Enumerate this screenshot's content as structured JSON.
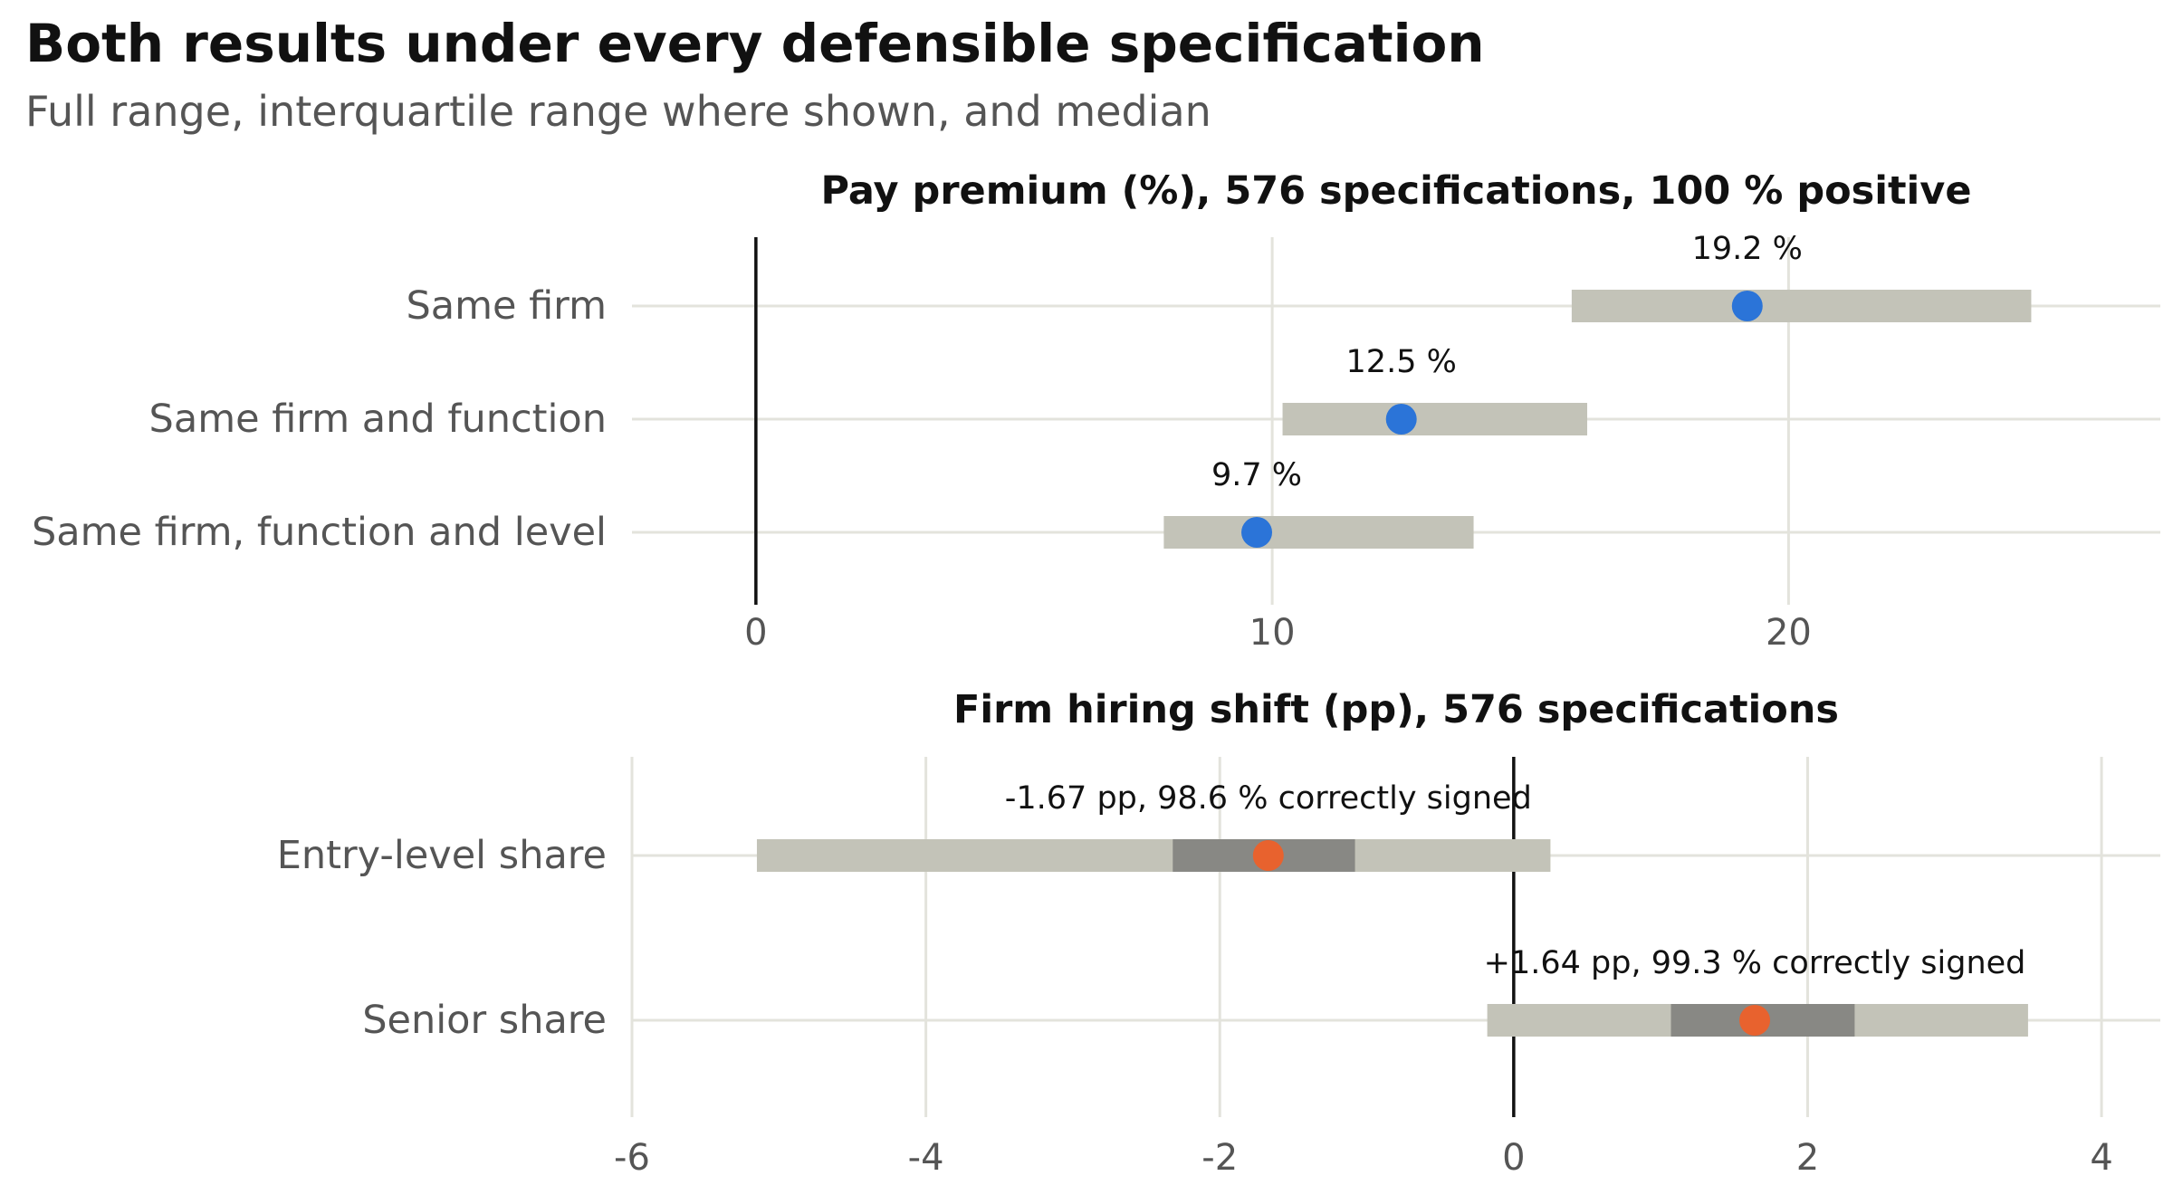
{
  "title": "Both results under every defensible specification",
  "subtitle": "Full range, interquartile range where shown, and median",
  "colors": {
    "grid": "#e3e3dc",
    "range_bar": "#c3c3b8",
    "iqr_bar": "#888884",
    "pay_point": "#2b74d8",
    "hiring_point": "#e8622e",
    "zero_line": "#111111",
    "label_text": "#555555",
    "annotation_text": "#111111"
  },
  "chart_data": [
    {
      "type": "range",
      "title": "Pay premium (%), 576 specifications, 100 % positive",
      "xlim": [
        -2.4,
        27.2
      ],
      "xticks": [
        0,
        10,
        20
      ],
      "xtick_labels": [
        "0",
        "10",
        "20"
      ],
      "grid": true,
      "reference_line": 0,
      "rows": [
        {
          "label": "Same firm",
          "min": 15.8,
          "max": 24.7,
          "median": 19.2,
          "annotation": "19.2 %"
        },
        {
          "label": "Same firm and function",
          "min": 10.2,
          "max": 16.1,
          "median": 12.5,
          "annotation": "12.5 %"
        },
        {
          "label": "Same firm, function and level",
          "min": 7.9,
          "max": 13.9,
          "median": 9.7,
          "annotation": "9.7 %"
        }
      ]
    },
    {
      "type": "range",
      "title": "Firm hiring shift (pp), 576 specifications",
      "xlim": [
        -6.0,
        4.4
      ],
      "xticks": [
        -6,
        -4,
        -2,
        0,
        2,
        4
      ],
      "xtick_labels": [
        "-6",
        "-4",
        "-2",
        "0",
        "2",
        "4"
      ],
      "grid": true,
      "reference_line": 0,
      "rows": [
        {
          "label": "Entry-level share",
          "min": -5.15,
          "max": 0.25,
          "q1": -2.32,
          "q3": -1.08,
          "median": -1.67,
          "annotation": "-1.67 pp, 98.6 % correctly signed"
        },
        {
          "label": "Senior share",
          "min": -0.18,
          "max": 3.5,
          "q1": 1.07,
          "q3": 2.32,
          "median": 1.64,
          "annotation": "+1.64 pp, 99.3 % correctly signed"
        }
      ]
    }
  ]
}
